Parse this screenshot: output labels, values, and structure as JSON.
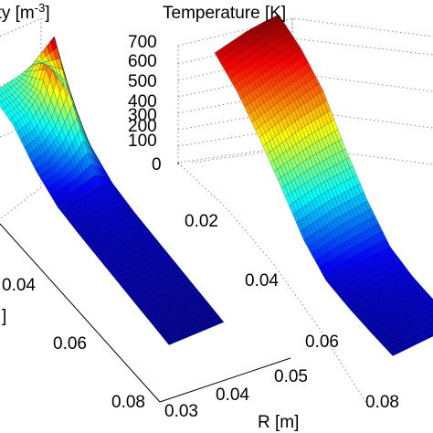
{
  "chart_data": [
    {
      "type": "surface",
      "title": "Density [m",
      "title_superscript": "-3",
      "title_suffix": "]",
      "xlabel": "",
      "ylabel": "",
      "zlabel": "",
      "x_axis_ticks": [
        "0.04",
        "0.06",
        "0.08"
      ],
      "y_axis_ticks": [
        "0.03",
        "0.04",
        "0.05"
      ],
      "y_axis_label": "",
      "x_axis_label_fragment": "]",
      "colormap": "jet",
      "grid": true,
      "surface_x": [
        0.0,
        0.01,
        0.02,
        0.03,
        0.04,
        0.05,
        0.06,
        0.07,
        0.08
      ],
      "surface_y": [
        0.03,
        0.035,
        0.04,
        0.045,
        0.05
      ],
      "surface_z_rel": [
        [
          0.4,
          0.42,
          0.45,
          0.5,
          0.48
        ],
        [
          0.35,
          0.4,
          0.55,
          1.0,
          0.45
        ],
        [
          0.18,
          0.22,
          0.32,
          0.5,
          0.2
        ],
        [
          0.08,
          0.09,
          0.1,
          0.11,
          0.09
        ],
        [
          0.06,
          0.06,
          0.07,
          0.07,
          0.06
        ],
        [
          0.05,
          0.05,
          0.05,
          0.05,
          0.05
        ],
        [
          0.04,
          0.04,
          0.04,
          0.04,
          0.04
        ],
        [
          0.03,
          0.03,
          0.03,
          0.03,
          0.03
        ],
        [
          0.02,
          0.02,
          0.02,
          0.02,
          0.02
        ]
      ]
    },
    {
      "type": "surface",
      "title": "Temperature [K]",
      "xlabel": "",
      "ylabel": "R [m]",
      "zlabel": "",
      "z_ticks": [
        "0",
        "100",
        "200",
        "300",
        "400",
        "500",
        "600",
        "700"
      ],
      "z_tick_values": [
        0,
        100,
        200,
        300,
        400,
        500,
        600,
        700
      ],
      "zlim": [
        0,
        700
      ],
      "x_axis_ticks": [
        "0.02",
        "0.04",
        "0.06",
        "0.08"
      ],
      "colormap": "jet",
      "grid": true,
      "surface_x": [
        0.0,
        0.01,
        0.02,
        0.03,
        0.04,
        0.05,
        0.06,
        0.07,
        0.08
      ],
      "surface_y": [
        0.03,
        0.035,
        0.04,
        0.045,
        0.05
      ],
      "surface_z": [
        [
          640,
          660,
          680,
          690,
          695
        ],
        [
          560,
          580,
          600,
          620,
          640
        ],
        [
          440,
          470,
          500,
          520,
          540
        ],
        [
          300,
          320,
          340,
          350,
          360
        ],
        [
          150,
          170,
          190,
          200,
          210
        ],
        [
          60,
          70,
          80,
          90,
          95
        ],
        [
          40,
          45,
          50,
          55,
          60
        ],
        [
          30,
          35,
          40,
          45,
          50
        ],
        [
          25,
          30,
          35,
          40,
          45
        ]
      ]
    }
  ]
}
